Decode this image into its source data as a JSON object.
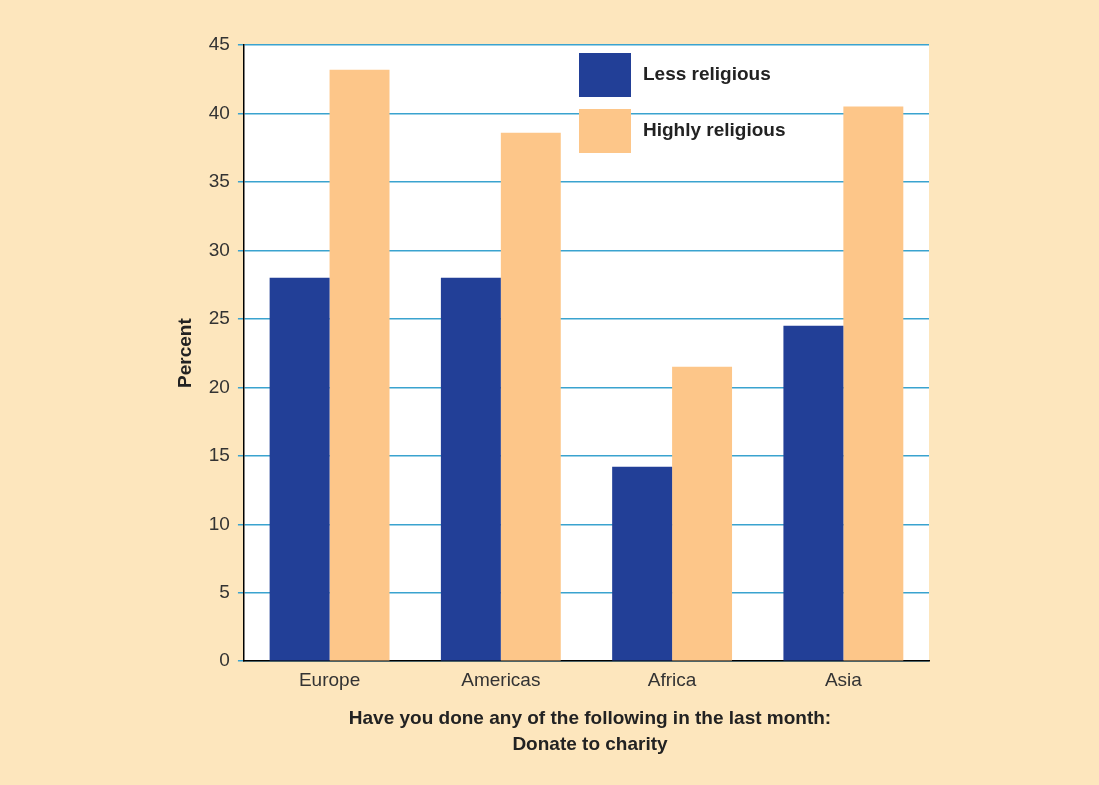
{
  "chart_data": {
    "type": "bar",
    "xlabel": "Have you done any of the following in the last month: Donate to charity",
    "ylabel": "Percent",
    "categories": [
      "Europe",
      "Americas",
      "Africa",
      "Asia"
    ],
    "series": [
      {
        "name": "Less religious",
        "color": "#223f97",
        "values": [
          28,
          28,
          14.2,
          24.5
        ]
      },
      {
        "name": "Highly religious",
        "color": "#fdc689",
        "values": [
          43.2,
          38.6,
          21.5,
          40.5
        ]
      }
    ],
    "ylim": [
      0,
      45
    ],
    "yticks": [
      0,
      5,
      10,
      15,
      20,
      25,
      30,
      35,
      40,
      45
    ],
    "grid": "y",
    "legend": "top right"
  }
}
